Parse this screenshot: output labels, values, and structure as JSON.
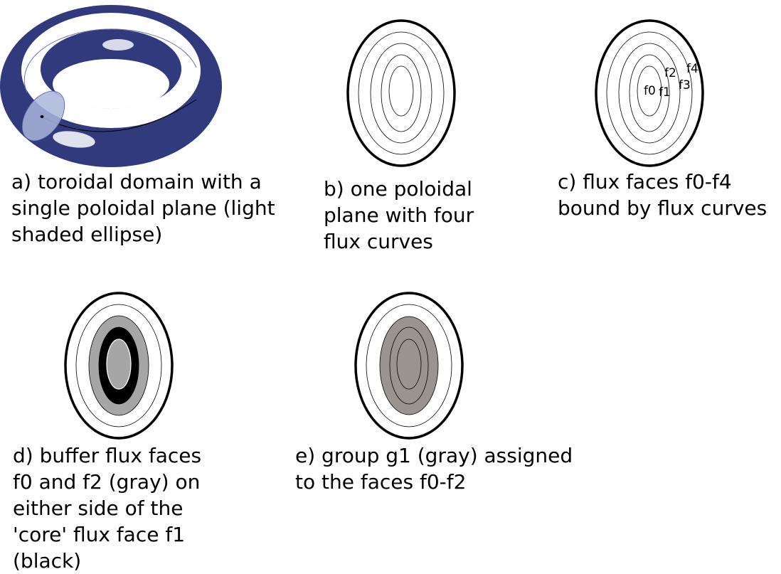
{
  "panels": {
    "a": {
      "caption": "a) toroidal domain with a\nsingle poloidal plane (light\nshaded ellipse)"
    },
    "b": {
      "caption": "b) one poloidal\nplane with four\nflux curves"
    },
    "c": {
      "caption": "c) flux faces f0-f4\nbound by flux curves",
      "labels": {
        "f0": "f0",
        "f1": "f1",
        "f2": "f2",
        "f3": "f3",
        "f4": "f4"
      }
    },
    "d": {
      "caption": "d) buffer flux faces\nf0 and f2 (gray) on\neither side of the\n'core' flux face f1\n(black)"
    },
    "e": {
      "caption": "e) group g1 (gray) assigned\nto the faces f0-f2"
    }
  },
  "colors": {
    "torus": "#313a7c",
    "buffer_gray": "#a6a6a6",
    "core_black": "#000000",
    "group_gray": "#9a9390",
    "poloidal_plane": "#a9b6dc"
  }
}
